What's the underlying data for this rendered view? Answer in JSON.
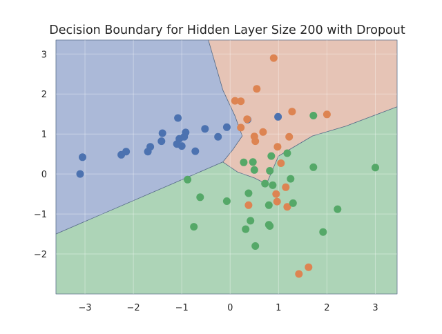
{
  "chart_data": {
    "type": "scatter",
    "title": "Decision Boundary for Hidden Layer Size 200 with Dropout",
    "xlabel": "",
    "ylabel": "",
    "xlim": [
      -3.6,
      3.45
    ],
    "ylim": [
      -3.0,
      3.35
    ],
    "x_ticks": [
      -3,
      -2,
      -1,
      0,
      1,
      2,
      3
    ],
    "y_ticks": [
      -2,
      -1,
      0,
      1,
      2,
      3
    ],
    "x_tick_labels": [
      "−3",
      "−2",
      "−1",
      "0",
      "1",
      "2",
      "3"
    ],
    "y_tick_labels": [
      "−2",
      "−1",
      "0",
      "1",
      "2",
      "3"
    ],
    "grid": true,
    "legend": "none",
    "colors": {
      "class_0_region": "#abb9d8",
      "class_1_region": "#e6c4b6",
      "class_2_region": "#add4b7",
      "class_0_point": "#4c72b0",
      "class_1_point": "#dd8452",
      "class_2_point": "#55a868",
      "boundary": "#5a6f8a",
      "grid": "#ffffff"
    },
    "regions": {
      "class_0_vertices": [
        [
          -3.6,
          3.35
        ],
        [
          -0.45,
          3.35
        ],
        [
          -0.15,
          2.1
        ],
        [
          0.1,
          1.45
        ],
        [
          0.25,
          0.95
        ],
        [
          0.05,
          0.6
        ],
        [
          -0.15,
          0.3
        ],
        [
          -3.6,
          -1.5
        ]
      ],
      "class_1_vertices": [
        [
          -0.45,
          3.35
        ],
        [
          3.45,
          3.35
        ],
        [
          3.45,
          1.68
        ],
        [
          2.4,
          1.2
        ],
        [
          1.7,
          0.95
        ],
        [
          1.0,
          0.45
        ],
        [
          0.75,
          -0.25
        ],
        [
          0.5,
          -0.1
        ],
        [
          0.15,
          0.05
        ],
        [
          -0.15,
          0.3
        ],
        [
          0.05,
          0.6
        ],
        [
          0.25,
          0.95
        ],
        [
          0.1,
          1.45
        ],
        [
          -0.15,
          2.1
        ]
      ],
      "class_2_vertices": [
        [
          -3.6,
          -1.5
        ],
        [
          -0.15,
          0.3
        ],
        [
          0.15,
          0.05
        ],
        [
          0.5,
          -0.1
        ],
        [
          0.75,
          -0.25
        ],
        [
          1.0,
          0.45
        ],
        [
          1.7,
          0.95
        ],
        [
          2.4,
          1.2
        ],
        [
          3.45,
          1.68
        ],
        [
          3.45,
          -3.0
        ],
        [
          -3.6,
          -3.0
        ]
      ]
    },
    "series": [
      {
        "class": 0,
        "points": [
          [
            -3.1,
            0.0
          ],
          [
            -3.05,
            0.42
          ],
          [
            -2.25,
            0.48
          ],
          [
            -2.15,
            0.56
          ],
          [
            -1.7,
            0.56
          ],
          [
            -1.65,
            0.68
          ],
          [
            -1.42,
            0.82
          ],
          [
            -1.4,
            1.02
          ],
          [
            -1.1,
            0.75
          ],
          [
            -1.08,
            1.4
          ],
          [
            -1.05,
            0.88
          ],
          [
            -1.0,
            0.7
          ],
          [
            -0.95,
            0.93
          ],
          [
            -0.92,
            1.04
          ],
          [
            -0.72,
            0.57
          ],
          [
            -0.52,
            1.13
          ],
          [
            -0.25,
            0.93
          ],
          [
            -0.07,
            1.17
          ],
          [
            0.36,
            1.36
          ],
          [
            0.99,
            1.43
          ]
        ]
      },
      {
        "class": 1,
        "points": [
          [
            0.1,
            1.83
          ],
          [
            0.22,
            1.82
          ],
          [
            0.22,
            1.16
          ],
          [
            0.35,
            1.37
          ],
          [
            0.5,
            0.94
          ],
          [
            0.52,
            0.82
          ],
          [
            0.55,
            2.13
          ],
          [
            0.68,
            1.05
          ],
          [
            0.9,
            2.9
          ],
          [
            0.98,
            0.68
          ],
          [
            1.05,
            0.27
          ],
          [
            1.15,
            -0.33
          ],
          [
            1.18,
            -0.82
          ],
          [
            1.22,
            0.93
          ],
          [
            1.28,
            1.56
          ],
          [
            0.95,
            -0.5
          ],
          [
            0.97,
            -0.69
          ],
          [
            1.42,
            -2.5
          ],
          [
            1.62,
            -2.33
          ],
          [
            2.0,
            1.49
          ],
          [
            0.38,
            -0.78
          ]
        ]
      },
      {
        "class": 2,
        "points": [
          [
            -0.88,
            -0.14
          ],
          [
            -0.62,
            -0.58
          ],
          [
            -0.75,
            -1.32
          ],
          [
            -0.07,
            -0.68
          ],
          [
            0.28,
            0.29
          ],
          [
            0.32,
            -1.38
          ],
          [
            0.38,
            -0.48
          ],
          [
            0.42,
            -1.17
          ],
          [
            0.47,
            0.3
          ],
          [
            0.5,
            0.1
          ],
          [
            0.52,
            -1.8
          ],
          [
            0.72,
            -0.24
          ],
          [
            0.8,
            -0.78
          ],
          [
            0.8,
            -1.27
          ],
          [
            0.82,
            -1.3
          ],
          [
            0.82,
            0.08
          ],
          [
            0.85,
            0.45
          ],
          [
            0.88,
            -0.28
          ],
          [
            1.18,
            0.52
          ],
          [
            1.25,
            -0.12
          ],
          [
            1.3,
            -0.73
          ],
          [
            1.72,
            1.46
          ],
          [
            1.72,
            0.17
          ],
          [
            1.92,
            -1.45
          ],
          [
            2.22,
            -0.88
          ],
          [
            3.0,
            0.16
          ]
        ]
      }
    ]
  }
}
